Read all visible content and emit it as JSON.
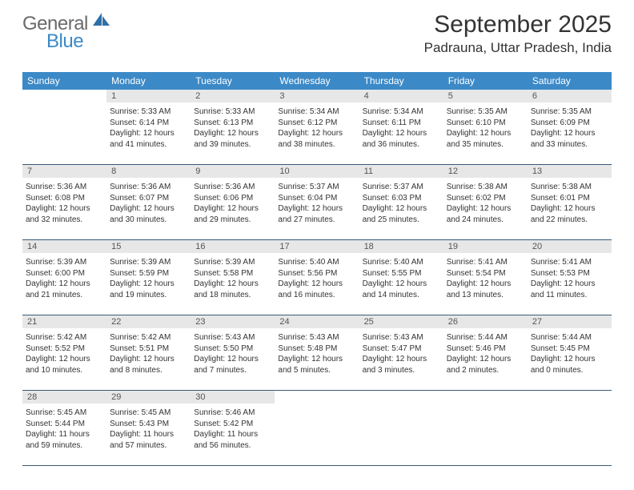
{
  "logo": {
    "main": "General",
    "sub": "Blue"
  },
  "header": {
    "title": "September 2025",
    "location": "Padrauna, Uttar Pradesh, India"
  },
  "colors": {
    "header_bg": "#3b89c7",
    "date_bg": "#e7e7e7",
    "rule": "#3b5b77",
    "text": "#333333"
  },
  "daynames": [
    "Sunday",
    "Monday",
    "Tuesday",
    "Wednesday",
    "Thursday",
    "Friday",
    "Saturday"
  ],
  "weeks": [
    [
      {
        "n": "",
        "sr": "",
        "ss": "",
        "dl": ""
      },
      {
        "n": "1",
        "sr": "5:33 AM",
        "ss": "6:14 PM",
        "dl": "12 hours and 41 minutes."
      },
      {
        "n": "2",
        "sr": "5:33 AM",
        "ss": "6:13 PM",
        "dl": "12 hours and 39 minutes."
      },
      {
        "n": "3",
        "sr": "5:34 AM",
        "ss": "6:12 PM",
        "dl": "12 hours and 38 minutes."
      },
      {
        "n": "4",
        "sr": "5:34 AM",
        "ss": "6:11 PM",
        "dl": "12 hours and 36 minutes."
      },
      {
        "n": "5",
        "sr": "5:35 AM",
        "ss": "6:10 PM",
        "dl": "12 hours and 35 minutes."
      },
      {
        "n": "6",
        "sr": "5:35 AM",
        "ss": "6:09 PM",
        "dl": "12 hours and 33 minutes."
      }
    ],
    [
      {
        "n": "7",
        "sr": "5:36 AM",
        "ss": "6:08 PM",
        "dl": "12 hours and 32 minutes."
      },
      {
        "n": "8",
        "sr": "5:36 AM",
        "ss": "6:07 PM",
        "dl": "12 hours and 30 minutes."
      },
      {
        "n": "9",
        "sr": "5:36 AM",
        "ss": "6:06 PM",
        "dl": "12 hours and 29 minutes."
      },
      {
        "n": "10",
        "sr": "5:37 AM",
        "ss": "6:04 PM",
        "dl": "12 hours and 27 minutes."
      },
      {
        "n": "11",
        "sr": "5:37 AM",
        "ss": "6:03 PM",
        "dl": "12 hours and 25 minutes."
      },
      {
        "n": "12",
        "sr": "5:38 AM",
        "ss": "6:02 PM",
        "dl": "12 hours and 24 minutes."
      },
      {
        "n": "13",
        "sr": "5:38 AM",
        "ss": "6:01 PM",
        "dl": "12 hours and 22 minutes."
      }
    ],
    [
      {
        "n": "14",
        "sr": "5:39 AM",
        "ss": "6:00 PM",
        "dl": "12 hours and 21 minutes."
      },
      {
        "n": "15",
        "sr": "5:39 AM",
        "ss": "5:59 PM",
        "dl": "12 hours and 19 minutes."
      },
      {
        "n": "16",
        "sr": "5:39 AM",
        "ss": "5:58 PM",
        "dl": "12 hours and 18 minutes."
      },
      {
        "n": "17",
        "sr": "5:40 AM",
        "ss": "5:56 PM",
        "dl": "12 hours and 16 minutes."
      },
      {
        "n": "18",
        "sr": "5:40 AM",
        "ss": "5:55 PM",
        "dl": "12 hours and 14 minutes."
      },
      {
        "n": "19",
        "sr": "5:41 AM",
        "ss": "5:54 PM",
        "dl": "12 hours and 13 minutes."
      },
      {
        "n": "20",
        "sr": "5:41 AM",
        "ss": "5:53 PM",
        "dl": "12 hours and 11 minutes."
      }
    ],
    [
      {
        "n": "21",
        "sr": "5:42 AM",
        "ss": "5:52 PM",
        "dl": "12 hours and 10 minutes."
      },
      {
        "n": "22",
        "sr": "5:42 AM",
        "ss": "5:51 PM",
        "dl": "12 hours and 8 minutes."
      },
      {
        "n": "23",
        "sr": "5:43 AM",
        "ss": "5:50 PM",
        "dl": "12 hours and 7 minutes."
      },
      {
        "n": "24",
        "sr": "5:43 AM",
        "ss": "5:48 PM",
        "dl": "12 hours and 5 minutes."
      },
      {
        "n": "25",
        "sr": "5:43 AM",
        "ss": "5:47 PM",
        "dl": "12 hours and 3 minutes."
      },
      {
        "n": "26",
        "sr": "5:44 AM",
        "ss": "5:46 PM",
        "dl": "12 hours and 2 minutes."
      },
      {
        "n": "27",
        "sr": "5:44 AM",
        "ss": "5:45 PM",
        "dl": "12 hours and 0 minutes."
      }
    ],
    [
      {
        "n": "28",
        "sr": "5:45 AM",
        "ss": "5:44 PM",
        "dl": "11 hours and 59 minutes."
      },
      {
        "n": "29",
        "sr": "5:45 AM",
        "ss": "5:43 PM",
        "dl": "11 hours and 57 minutes."
      },
      {
        "n": "30",
        "sr": "5:46 AM",
        "ss": "5:42 PM",
        "dl": "11 hours and 56 minutes."
      },
      {
        "n": "",
        "sr": "",
        "ss": "",
        "dl": ""
      },
      {
        "n": "",
        "sr": "",
        "ss": "",
        "dl": ""
      },
      {
        "n": "",
        "sr": "",
        "ss": "",
        "dl": ""
      },
      {
        "n": "",
        "sr": "",
        "ss": "",
        "dl": ""
      }
    ]
  ],
  "labels": {
    "sunrise": "Sunrise:",
    "sunset": "Sunset:",
    "daylight": "Daylight:"
  }
}
